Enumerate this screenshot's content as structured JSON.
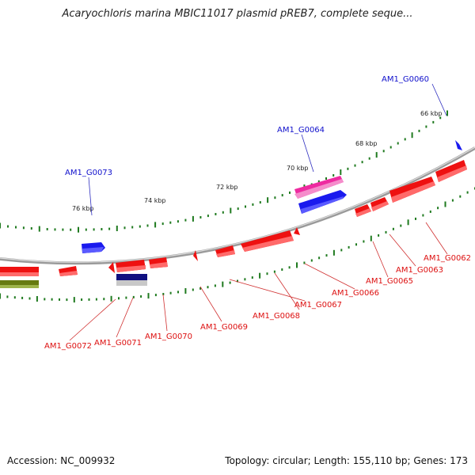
{
  "title": "Acaryochloris marina MBIC11017 plasmid pREB7, complete seque...",
  "footer": {
    "accession": "Accession: NC_009932",
    "summary": "Topology: circular; Length: 155,110 bp; Genes: 173"
  },
  "colors": {
    "forward_gene": "#1a1aee",
    "reverse_gene": "#ee1111",
    "pink_gene": "#ee2aa0",
    "navy_gene": "#101080",
    "olive_gene": "#667a10",
    "backbone": "#888888",
    "tick": "#1f7a1f",
    "label_blue": "#1010cc",
    "label_red": "#dd1010"
  },
  "ticks": [
    {
      "label": "66 kbp"
    },
    {
      "label": "68 kbp"
    },
    {
      "label": "70 kbp"
    },
    {
      "label": "72 kbp"
    },
    {
      "label": "74 kbp"
    },
    {
      "label": "76 kbp"
    }
  ],
  "labels_top": [
    "AM1_G0060",
    "AM1_G0064",
    "AM1_G0073"
  ],
  "labels_bottom": [
    "AM1_G0062",
    "AM1_G0063",
    "AM1_G0065",
    "AM1_G0066",
    "AM1_G0067",
    "AM1_G0068",
    "AM1_G0069",
    "AM1_G0070",
    "AM1_G0071",
    "AM1_G0072"
  ]
}
